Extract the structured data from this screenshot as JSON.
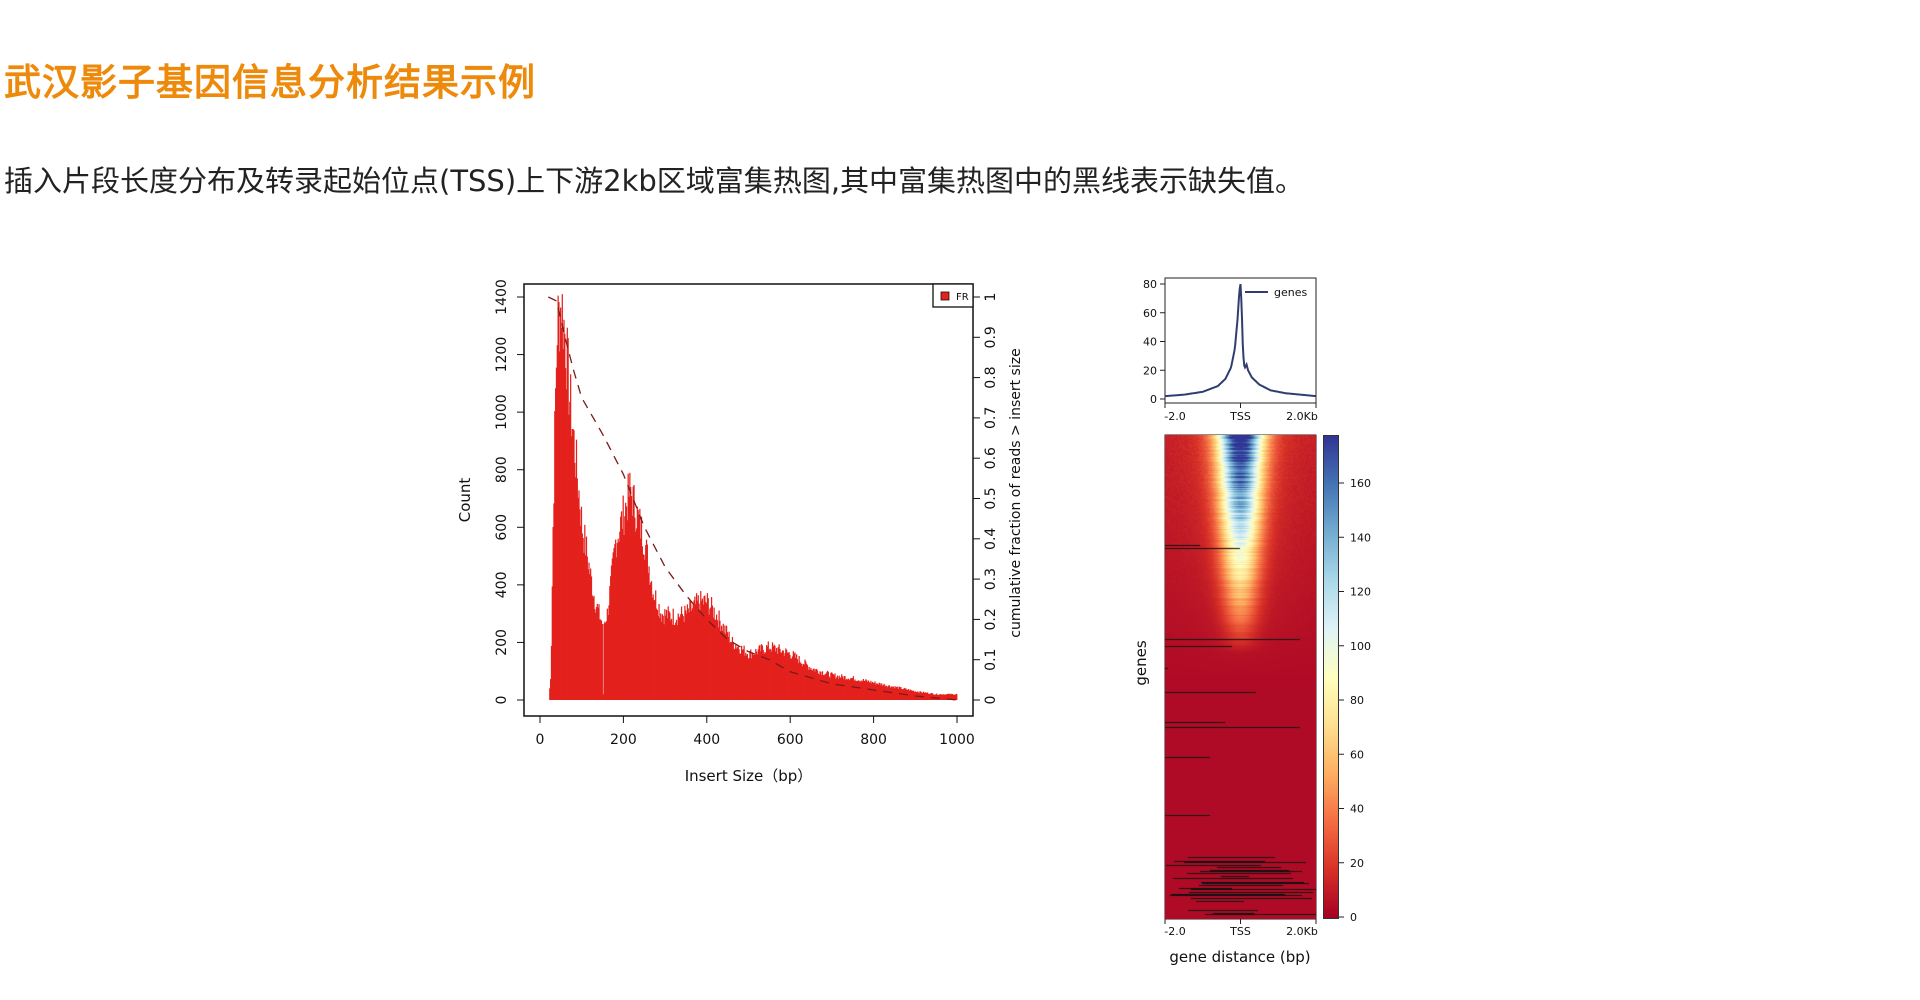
{
  "header": {
    "title": "武汉影子基因信息分析结果示例",
    "subtitle": "插入片段长度分布及转录起始位点(TSS)上下游2kb区域富集热图,其中富集热图中的黑线表示缺失值。"
  },
  "chart_data": [
    {
      "type": "bar",
      "title": "",
      "xlabel": "Insert Size（bp）",
      "ylabel": "Count",
      "y2label": "cumulative fraction of reads > insert size",
      "xlim": [
        0,
        1000
      ],
      "ylim": [
        0,
        1400
      ],
      "y2lim": [
        0,
        1
      ],
      "xticks": [
        "0",
        "200",
        "400",
        "600",
        "800",
        "1000"
      ],
      "yticks": [
        "0",
        "200",
        "400",
        "600",
        "800",
        "1000",
        "1200",
        "1400"
      ],
      "y2ticks": [
        "0",
        "0.1",
        "0.2",
        "0.3",
        "0.4",
        "0.5",
        "0.6",
        "0.7",
        "0.8",
        "0.9",
        "1"
      ],
      "legend": {
        "position": "top-right",
        "entries": [
          "FR"
        ]
      },
      "color": "#e4211c",
      "line_color": "#7a1a1a",
      "histogram_keypoints": [
        [
          20,
          0
        ],
        [
          25,
          100
        ],
        [
          30,
          600
        ],
        [
          35,
          1000
        ],
        [
          40,
          1300
        ],
        [
          50,
          1380
        ],
        [
          60,
          1250
        ],
        [
          70,
          1050
        ],
        [
          80,
          900
        ],
        [
          90,
          750
        ],
        [
          100,
          600
        ],
        [
          110,
          520
        ],
        [
          120,
          430
        ],
        [
          130,
          350
        ],
        [
          140,
          300
        ],
        [
          150,
          260
        ],
        [
          160,
          300
        ],
        [
          170,
          420
        ],
        [
          180,
          550
        ],
        [
          200,
          650
        ],
        [
          215,
          730
        ],
        [
          230,
          650
        ],
        [
          250,
          550
        ],
        [
          270,
          380
        ],
        [
          290,
          300
        ],
        [
          320,
          290
        ],
        [
          350,
          300
        ],
        [
          380,
          340
        ],
        [
          400,
          340
        ],
        [
          420,
          300
        ],
        [
          440,
          250
        ],
        [
          460,
          200
        ],
        [
          500,
          160
        ],
        [
          550,
          185
        ],
        [
          600,
          160
        ],
        [
          650,
          110
        ],
        [
          700,
          85
        ],
        [
          750,
          75
        ],
        [
          800,
          60
        ],
        [
          850,
          45
        ],
        [
          900,
          30
        ],
        [
          950,
          20
        ],
        [
          1000,
          20
        ]
      ],
      "cumulative": [
        [
          20,
          1
        ],
        [
          40,
          0.99
        ],
        [
          60,
          0.9
        ],
        [
          80,
          0.82
        ],
        [
          100,
          0.75
        ],
        [
          150,
          0.66
        ],
        [
          200,
          0.56
        ],
        [
          250,
          0.43
        ],
        [
          300,
          0.33
        ],
        [
          350,
          0.26
        ],
        [
          400,
          0.2
        ],
        [
          450,
          0.15
        ],
        [
          500,
          0.12
        ],
        [
          550,
          0.1
        ],
        [
          600,
          0.07
        ],
        [
          700,
          0.04
        ],
        [
          800,
          0.025
        ],
        [
          900,
          0.01
        ],
        [
          1000,
          0
        ]
      ]
    },
    {
      "type": "line",
      "xlabel": "",
      "ylabel": "",
      "ylim": [
        0,
        85
      ],
      "xticks": [
        "-2.0",
        "TSS",
        "2.0Kb"
      ],
      "yticks": [
        "0",
        "20",
        "40",
        "60",
        "80"
      ],
      "legend": {
        "position": "top-right",
        "entries": [
          "genes"
        ]
      },
      "color": "#2f3e6e",
      "points": [
        [
          -2000,
          2
        ],
        [
          -1500,
          3
        ],
        [
          -1000,
          5
        ],
        [
          -600,
          9
        ],
        [
          -400,
          14
        ],
        [
          -250,
          22
        ],
        [
          -150,
          35
        ],
        [
          -80,
          55
        ],
        [
          -30,
          75
        ],
        [
          0,
          80
        ],
        [
          30,
          65
        ],
        [
          60,
          38
        ],
        [
          90,
          24
        ],
        [
          120,
          22
        ],
        [
          160,
          24
        ],
        [
          200,
          20
        ],
        [
          300,
          15
        ],
        [
          500,
          10
        ],
        [
          800,
          6
        ],
        [
          1200,
          4
        ],
        [
          1600,
          3
        ],
        [
          2000,
          2
        ]
      ]
    },
    {
      "type": "heatmap",
      "xlabel": "gene distance (bp)",
      "ylabel": "genes",
      "xticks": [
        "-2.0",
        "TSS",
        "2.0Kb"
      ],
      "colorbar_ticks": [
        "0",
        "20",
        "40",
        "60",
        "80",
        "100",
        "120",
        "140",
        "160"
      ],
      "colorbar_range": [
        0,
        176
      ],
      "colormap": [
        "#a50026",
        "#d73027",
        "#f46d43",
        "#fdae61",
        "#fee090",
        "#ffffbf",
        "#e0f3f8",
        "#abd9e9",
        "#74add1",
        "#4575b4",
        "#313695"
      ]
    }
  ]
}
